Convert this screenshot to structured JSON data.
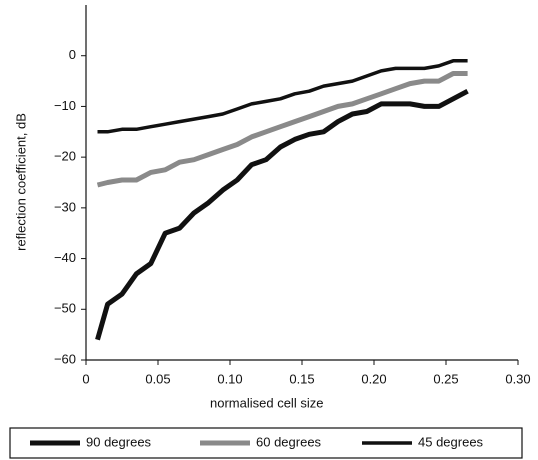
{
  "chart_data": {
    "type": "line",
    "xlabel": "normalised cell size",
    "ylabel": "reflection coefficient, dB",
    "x": [
      0.008,
      0.015,
      0.025,
      0.035,
      0.045,
      0.055,
      0.065,
      0.075,
      0.085,
      0.095,
      0.105,
      0.115,
      0.125,
      0.135,
      0.145,
      0.155,
      0.165,
      0.175,
      0.185,
      0.195,
      0.205,
      0.215,
      0.225,
      0.235,
      0.245,
      0.255,
      0.265
    ],
    "series": [
      {
        "name": "90 degrees",
        "color": "#111111",
        "width": 5,
        "values": [
          -56,
          -49,
          -47,
          -43,
          -41,
          -35,
          -34,
          -31,
          -29,
          -26.5,
          -24.5,
          -21.5,
          -20.5,
          -18,
          -16.5,
          -15.5,
          -15,
          -13,
          -11.5,
          -11,
          -9.5,
          -9.5,
          -9.5,
          -10,
          -10,
          -8.5,
          -7
        ]
      },
      {
        "name": "60 degrees",
        "color": "#8a8a8a",
        "width": 5,
        "values": [
          -25.5,
          -25,
          -24.5,
          -24.5,
          -23,
          -22.5,
          -21,
          -20.5,
          -19.5,
          -18.5,
          -17.5,
          -16,
          -15,
          -14,
          -13,
          -12,
          -11,
          -10,
          -9.5,
          -8.5,
          -7.5,
          -6.5,
          -5.5,
          -5,
          -5,
          -3.5,
          -3.5
        ]
      },
      {
        "name": "45 degrees",
        "color": "#111111",
        "width": 3.5,
        "values": [
          -15,
          -15,
          -14.5,
          -14.5,
          -14,
          -13.5,
          -13,
          -12.5,
          -12,
          -11.5,
          -10.5,
          -9.5,
          -9,
          -8.5,
          -7.5,
          -7,
          -6,
          -5.5,
          -5,
          -4,
          -3,
          -2.5,
          -2.5,
          -2.5,
          -2,
          -1,
          -1
        ]
      }
    ],
    "xlim": [
      0,
      0.3
    ],
    "xticks": [
      0,
      0.05,
      {
        "value": 0.1,
        "label": "0.10"
      },
      0.15,
      {
        "value": 0.2,
        "label": "0.20"
      },
      0.25,
      {
        "value": 0.3,
        "label": "0.30"
      }
    ],
    "ylim": [
      -60,
      10
    ],
    "yticks": [
      {
        "value": -60,
        "label": "−60"
      },
      {
        "value": -50,
        "label": "−50"
      },
      {
        "value": -40,
        "label": "−40"
      },
      {
        "value": -30,
        "label": "−30"
      },
      {
        "value": -20,
        "label": "−20"
      },
      {
        "value": -10,
        "label": "−10"
      },
      0
    ],
    "legend": "bottom"
  }
}
